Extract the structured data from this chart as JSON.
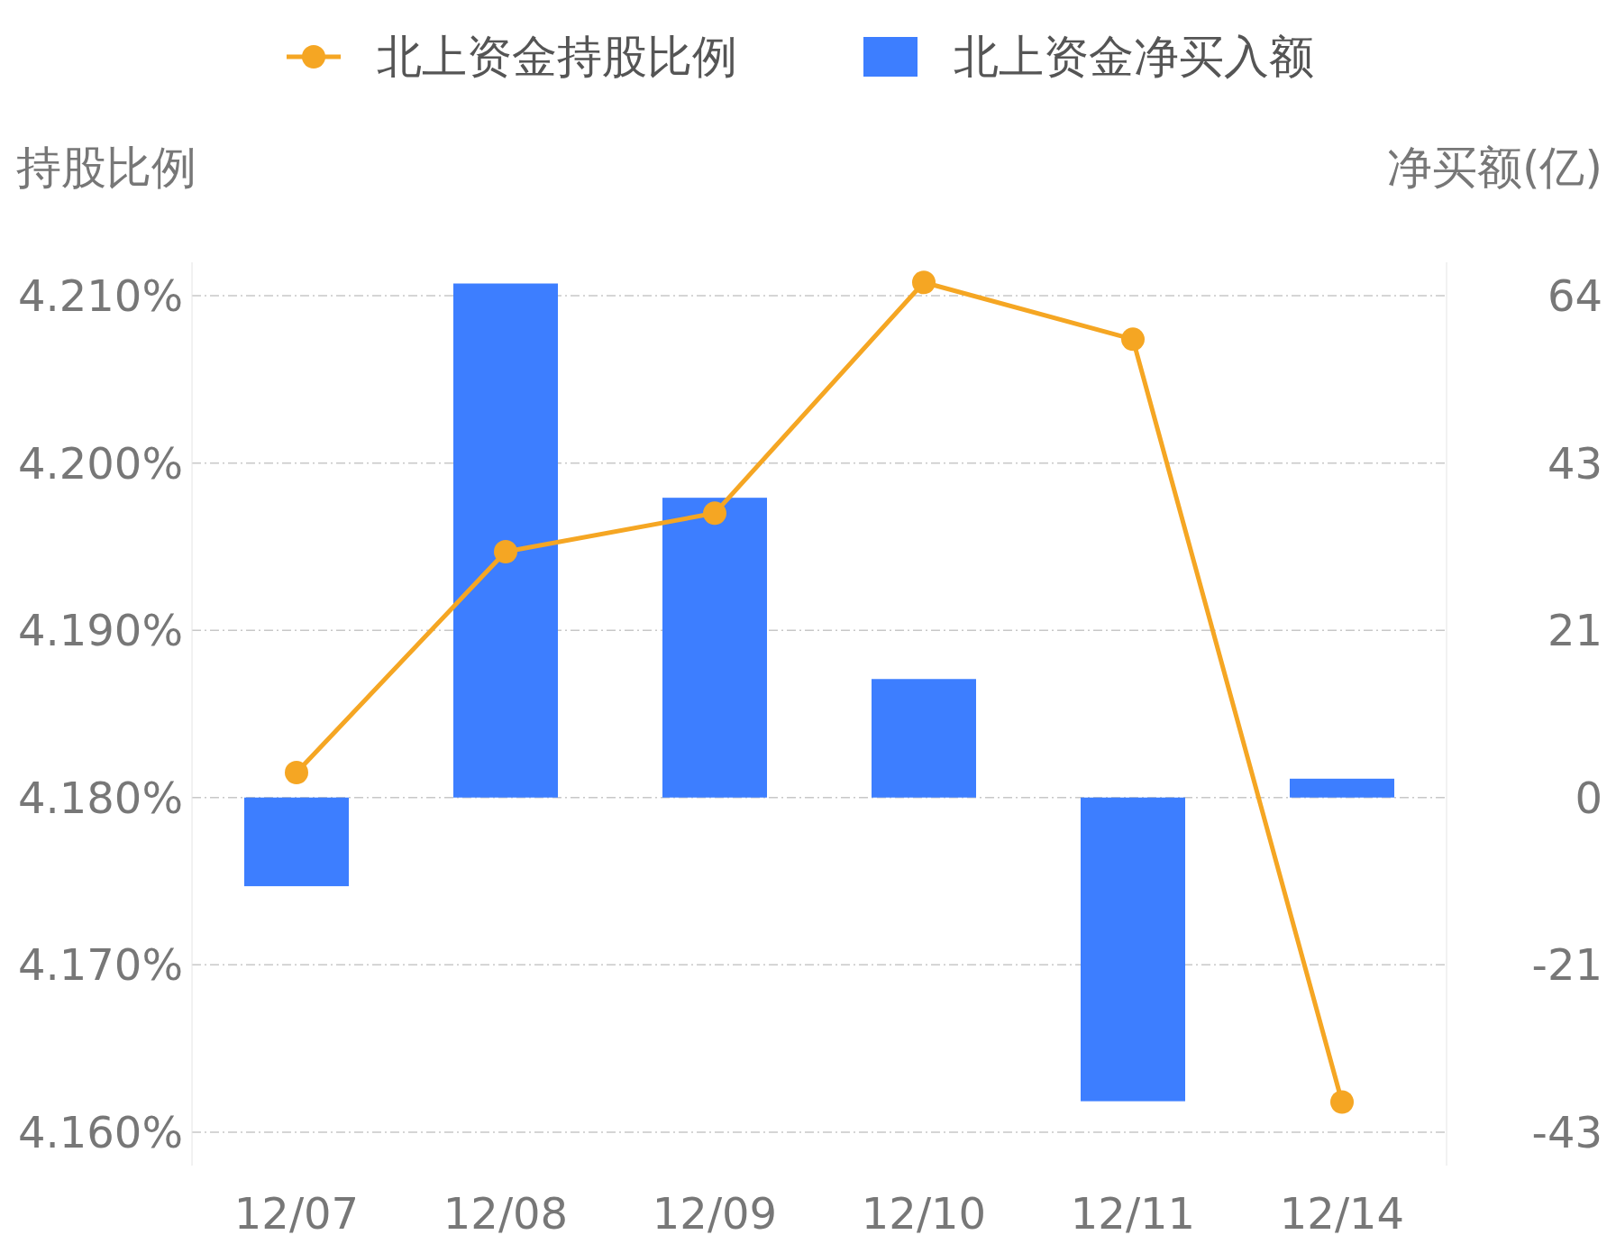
{
  "chart_data": {
    "type": "bar",
    "categories": [
      "12/07",
      "12/08",
      "12/09",
      "12/10",
      "12/11",
      "12/14"
    ],
    "ylabel": "持股比例",
    "y2label": "净买额(亿)",
    "ylim": [
      4.158,
      4.212
    ],
    "y2lim": [
      -46.9,
      68.2
    ],
    "yticks": [
      {
        "value": 4.16,
        "label": "4.160%"
      },
      {
        "value": 4.17,
        "label": "4.170%"
      },
      {
        "value": 4.18,
        "label": "4.180%"
      },
      {
        "value": 4.19,
        "label": "4.190%"
      },
      {
        "value": 4.2,
        "label": "4.200%"
      },
      {
        "value": 4.21,
        "label": "4.210%"
      }
    ],
    "y2ticks": [
      {
        "value": -42.6,
        "label": "-43"
      },
      {
        "value": -21.3,
        "label": "-21"
      },
      0,
      {
        "value": 21.3,
        "label": "21"
      },
      {
        "value": 42.6,
        "label": "43"
      },
      {
        "value": 63.9,
        "label": "64"
      }
    ],
    "grid": "y",
    "legend": "top",
    "marker": "circle",
    "line_style": "solid",
    "series": [
      {
        "name": "北上资金持股比例",
        "type": "line",
        "color": "#f5a623",
        "values": [
          4.1815,
          4.1947,
          4.197,
          4.2108,
          4.2074,
          4.1618
        ]
      },
      {
        "name": "北上资金净买入额",
        "axis": "y2",
        "color": "#3d7eff",
        "values": [
          -11.3,
          65.5,
          38.2,
          15.1,
          -38.7,
          2.4
        ]
      }
    ]
  }
}
